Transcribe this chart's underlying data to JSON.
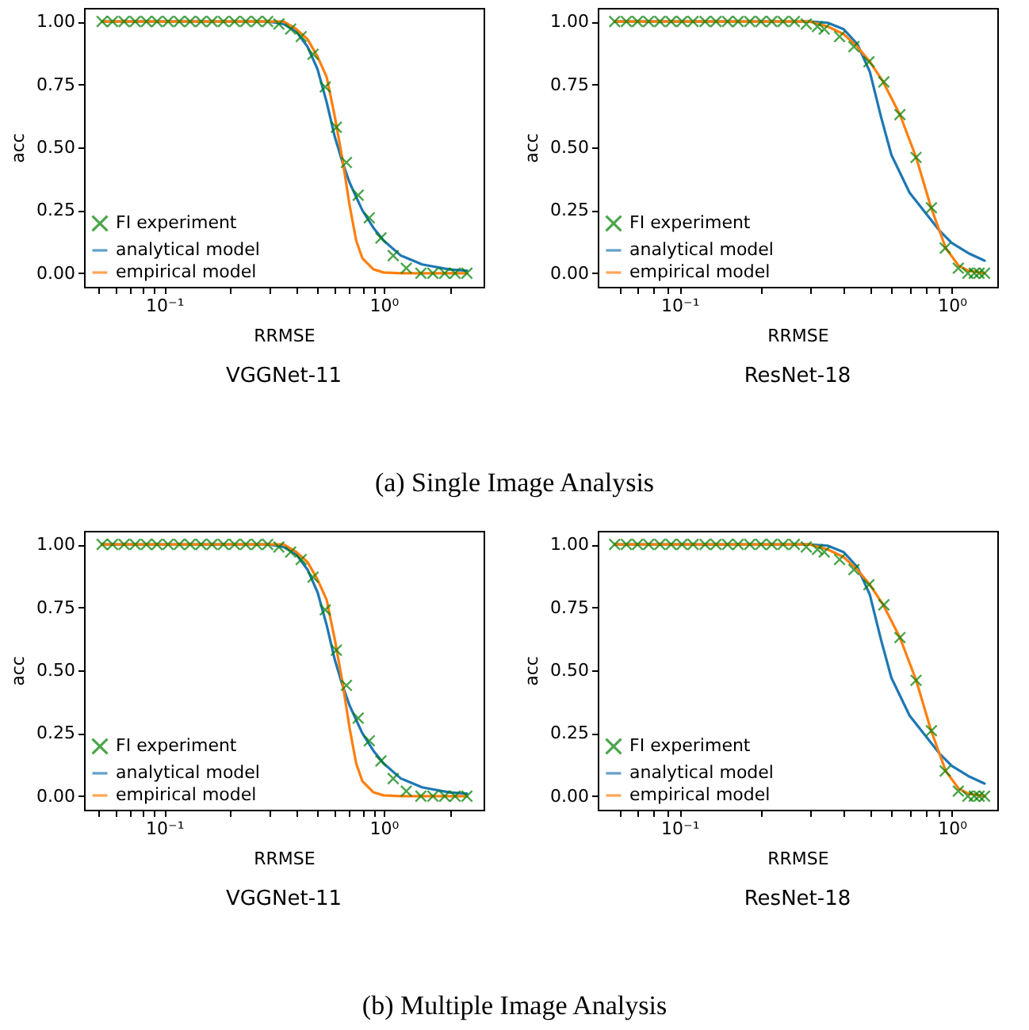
{
  "chart_data": [
    {
      "type": "line",
      "title": "VGGNet-11",
      "xlabel": "RRMSE",
      "ylabel": "acc",
      "log": "x",
      "legend": "bottom left",
      "grid": false,
      "annotations": [
        "(a)  Single Image Analysis"
      ],
      "xlim": [
        0.043,
        2.86
      ],
      "ylim": [
        -0.054,
        1.054
      ],
      "xticks": [
        {
          "value": 0.05,
          "label": null
        },
        {
          "value": 0.06,
          "label": null
        },
        {
          "value": 0.07,
          "label": null
        },
        {
          "value": 0.08,
          "label": null
        },
        {
          "value": 0.09,
          "label": null
        },
        {
          "value": 0.1,
          "label": "10⁻¹"
        },
        {
          "value": 0.2,
          "label": null
        },
        {
          "value": 0.3,
          "label": null
        },
        {
          "value": 0.4,
          "label": null
        },
        {
          "value": 0.5,
          "label": null
        },
        {
          "value": 0.6,
          "label": null
        },
        {
          "value": 0.7,
          "label": null
        },
        {
          "value": 0.8,
          "label": null
        },
        {
          "value": 0.9,
          "label": null
        },
        {
          "value": 1,
          "label": "10⁰"
        },
        {
          "value": 2,
          "label": null
        }
      ],
      "yticks": [
        {
          "value": 0,
          "label": "0.00"
        },
        {
          "value": 0.25,
          "label": "0.25"
        },
        {
          "value": 0.5,
          "label": "0.50"
        },
        {
          "value": 0.75,
          "label": "0.75"
        },
        {
          "value": 1,
          "label": "1.00"
        }
      ],
      "series": [
        {
          "name": "FI experiment",
          "type": "scatter",
          "marker": "cross",
          "color": "#008000",
          "x": [
            0.052,
            0.058,
            0.0655,
            0.0736,
            0.0828,
            0.0925,
            0.104,
            0.117,
            0.131,
            0.147,
            0.165,
            0.186,
            0.209,
            0.235,
            0.264,
            0.296,
            0.333,
            0.377,
            0.421,
            0.477,
            0.542,
            0.609,
            0.677,
            0.766,
            0.861,
            0.973,
            1.107,
            1.27,
            1.48,
            1.68,
            1.9,
            2.12,
            2.4
          ],
          "values": [
            1,
            1,
            1,
            1,
            1,
            1,
            1,
            1,
            1,
            1,
            1,
            1,
            1,
            1,
            1,
            1,
            0.99,
            0.97,
            0.94,
            0.87,
            0.74,
            0.58,
            0.44,
            0.31,
            0.22,
            0.14,
            0.07,
            0.02,
            0,
            0,
            0,
            0,
            0
          ]
        },
        {
          "name": "analytical model",
          "type": "line",
          "color": "#1f77b4",
          "x": [
            0.052,
            0.3,
            0.35,
            0.4,
            0.45,
            0.5,
            0.55,
            0.6,
            0.65,
            0.7,
            0.8,
            0.9,
            1.0,
            1.2,
            1.5,
            2.0,
            2.4
          ],
          "values": [
            1,
            1,
            0.99,
            0.96,
            0.9,
            0.81,
            0.68,
            0.54,
            0.44,
            0.36,
            0.25,
            0.18,
            0.13,
            0.07,
            0.035,
            0.015,
            0.01
          ]
        },
        {
          "name": "empirical model",
          "type": "line",
          "color": "#ff7f0e",
          "x": [
            0.052,
            0.35,
            0.4,
            0.45,
            0.5,
            0.55,
            0.6,
            0.65,
            0.7,
            0.75,
            0.8,
            0.9,
            1.0,
            1.2,
            2.4
          ],
          "values": [
            1,
            1,
            0.97,
            0.93,
            0.86,
            0.78,
            0.62,
            0.45,
            0.27,
            0.13,
            0.06,
            0.015,
            0.003,
            0,
            0
          ]
        }
      ]
    },
    {
      "type": "line",
      "title": "ResNet-18",
      "xlabel": "RRMSE",
      "ylabel": "acc",
      "log": "x",
      "legend": "bottom left",
      "grid": false,
      "xlim": [
        0.05,
        1.47
      ],
      "ylim": [
        -0.054,
        1.054
      ],
      "xticks": [
        {
          "value": 0.06,
          "label": null
        },
        {
          "value": 0.07,
          "label": null
        },
        {
          "value": 0.08,
          "label": null
        },
        {
          "value": 0.09,
          "label": null
        },
        {
          "value": 0.1,
          "label": "10⁻¹"
        },
        {
          "value": 0.2,
          "label": null
        },
        {
          "value": 0.3,
          "label": null
        },
        {
          "value": 0.4,
          "label": null
        },
        {
          "value": 0.5,
          "label": null
        },
        {
          "value": 0.6,
          "label": null
        },
        {
          "value": 0.7,
          "label": null
        },
        {
          "value": 0.8,
          "label": null
        },
        {
          "value": 0.9,
          "label": null
        },
        {
          "value": 1,
          "label": "10⁰"
        }
      ],
      "yticks": [
        {
          "value": 0,
          "label": "0.00"
        },
        {
          "value": 0.25,
          "label": "0.25"
        },
        {
          "value": 0.5,
          "label": "0.50"
        },
        {
          "value": 0.75,
          "label": "0.75"
        },
        {
          "value": 1,
          "label": "1.00"
        }
      ],
      "series": [
        {
          "name": "FI experiment",
          "type": "scatter",
          "marker": "cross",
          "color": "#008000",
          "x": [
            0.0577,
            0.0637,
            0.07,
            0.0769,
            0.0846,
            0.093,
            0.102,
            0.112,
            0.124,
            0.136,
            0.15,
            0.164,
            0.181,
            0.199,
            0.218,
            0.24,
            0.264,
            0.292,
            0.321,
            0.34,
            0.387,
            0.437,
            0.496,
            0.563,
            0.645,
            0.739,
            0.842,
            0.946,
            1.057,
            1.146,
            1.21,
            1.26,
            1.32
          ],
          "values": [
            1,
            1,
            1,
            1,
            1,
            1,
            1,
            1,
            1,
            1,
            1,
            1,
            1,
            1,
            1,
            1,
            1,
            0.99,
            0.98,
            0.97,
            0.94,
            0.9,
            0.84,
            0.76,
            0.63,
            0.46,
            0.26,
            0.1,
            0.02,
            0,
            0,
            0,
            0
          ]
        },
        {
          "name": "analytical model",
          "type": "line",
          "color": "#1f77b4",
          "x": [
            0.0577,
            0.3,
            0.35,
            0.4,
            0.45,
            0.5,
            0.55,
            0.6,
            0.7,
            0.8,
            0.9,
            1.0,
            1.15,
            1.32
          ],
          "values": [
            1,
            1,
            0.995,
            0.97,
            0.91,
            0.8,
            0.62,
            0.47,
            0.32,
            0.24,
            0.17,
            0.12,
            0.08,
            0.05
          ]
        },
        {
          "name": "empirical model",
          "type": "line",
          "color": "#ff7f0e",
          "x": [
            0.0577,
            0.3,
            0.35,
            0.4,
            0.45,
            0.5,
            0.56,
            0.645,
            0.74,
            0.84,
            0.95,
            1.06,
            1.15,
            1.32
          ],
          "values": [
            1,
            1,
            0.98,
            0.95,
            0.9,
            0.84,
            0.76,
            0.63,
            0.46,
            0.26,
            0.1,
            0.03,
            0.01,
            0
          ]
        }
      ]
    },
    {
      "type": "line",
      "title": "VGGNet-11",
      "xlabel": "RRMSE",
      "ylabel": "acc",
      "log": "x",
      "legend": "bottom left",
      "grid": false,
      "annotations": [
        "(b)  Multiple Image Analysis"
      ],
      "xlim": [
        0.043,
        2.86
      ],
      "ylim": [
        -0.054,
        1.054
      ],
      "xticks": [
        {
          "value": 0.05,
          "label": null
        },
        {
          "value": 0.06,
          "label": null
        },
        {
          "value": 0.07,
          "label": null
        },
        {
          "value": 0.08,
          "label": null
        },
        {
          "value": 0.09,
          "label": null
        },
        {
          "value": 0.1,
          "label": "10⁻¹"
        },
        {
          "value": 0.2,
          "label": null
        },
        {
          "value": 0.3,
          "label": null
        },
        {
          "value": 0.4,
          "label": null
        },
        {
          "value": 0.5,
          "label": null
        },
        {
          "value": 0.6,
          "label": null
        },
        {
          "value": 0.7,
          "label": null
        },
        {
          "value": 0.8,
          "label": null
        },
        {
          "value": 0.9,
          "label": null
        },
        {
          "value": 1,
          "label": "10⁰"
        },
        {
          "value": 2,
          "label": null
        }
      ],
      "yticks": [
        {
          "value": 0,
          "label": "0.00"
        },
        {
          "value": 0.25,
          "label": "0.25"
        },
        {
          "value": 0.5,
          "label": "0.50"
        },
        {
          "value": 0.75,
          "label": "0.75"
        },
        {
          "value": 1,
          "label": "1.00"
        }
      ],
      "series": [
        {
          "name": "FI experiment",
          "type": "scatter",
          "marker": "cross",
          "color": "#008000",
          "x": [
            0.052,
            0.058,
            0.0655,
            0.0736,
            0.0828,
            0.0925,
            0.104,
            0.117,
            0.131,
            0.147,
            0.165,
            0.186,
            0.209,
            0.235,
            0.264,
            0.296,
            0.333,
            0.377,
            0.421,
            0.477,
            0.542,
            0.609,
            0.677,
            0.766,
            0.861,
            0.973,
            1.107,
            1.27,
            1.48,
            1.68,
            1.9,
            2.12,
            2.4
          ],
          "values": [
            1,
            1,
            1,
            1,
            1,
            1,
            1,
            1,
            1,
            1,
            1,
            1,
            1,
            1,
            1,
            1,
            0.99,
            0.97,
            0.94,
            0.87,
            0.74,
            0.58,
            0.44,
            0.31,
            0.22,
            0.14,
            0.07,
            0.02,
            0,
            0,
            0,
            0,
            0
          ]
        },
        {
          "name": "analytical model",
          "type": "line",
          "color": "#1f77b4",
          "x": [
            0.052,
            0.3,
            0.35,
            0.4,
            0.45,
            0.5,
            0.55,
            0.6,
            0.65,
            0.7,
            0.8,
            0.9,
            1.0,
            1.2,
            1.5,
            2.0,
            2.4
          ],
          "values": [
            1,
            1,
            0.99,
            0.96,
            0.9,
            0.81,
            0.68,
            0.54,
            0.44,
            0.36,
            0.25,
            0.18,
            0.13,
            0.07,
            0.035,
            0.015,
            0.01
          ]
        },
        {
          "name": "empirical model",
          "type": "line",
          "color": "#ff7f0e",
          "x": [
            0.052,
            0.35,
            0.4,
            0.45,
            0.5,
            0.55,
            0.6,
            0.65,
            0.7,
            0.75,
            0.8,
            0.9,
            1.0,
            1.2,
            2.4
          ],
          "values": [
            1,
            1,
            0.97,
            0.93,
            0.86,
            0.78,
            0.62,
            0.45,
            0.27,
            0.13,
            0.06,
            0.015,
            0.003,
            0,
            0
          ]
        }
      ]
    },
    {
      "type": "line",
      "title": "ResNet-18",
      "xlabel": "RRMSE",
      "ylabel": "acc",
      "log": "x",
      "legend": "bottom left",
      "grid": false,
      "xlim": [
        0.05,
        1.47
      ],
      "ylim": [
        -0.054,
        1.054
      ],
      "xticks": [
        {
          "value": 0.06,
          "label": null
        },
        {
          "value": 0.07,
          "label": null
        },
        {
          "value": 0.08,
          "label": null
        },
        {
          "value": 0.09,
          "label": null
        },
        {
          "value": 0.1,
          "label": "10⁻¹"
        },
        {
          "value": 0.2,
          "label": null
        },
        {
          "value": 0.3,
          "label": null
        },
        {
          "value": 0.4,
          "label": null
        },
        {
          "value": 0.5,
          "label": null
        },
        {
          "value": 0.6,
          "label": null
        },
        {
          "value": 0.7,
          "label": null
        },
        {
          "value": 0.8,
          "label": null
        },
        {
          "value": 0.9,
          "label": null
        },
        {
          "value": 1,
          "label": "10⁰"
        }
      ],
      "yticks": [
        {
          "value": 0,
          "label": "0.00"
        },
        {
          "value": 0.25,
          "label": "0.25"
        },
        {
          "value": 0.5,
          "label": "0.50"
        },
        {
          "value": 0.75,
          "label": "0.75"
        },
        {
          "value": 1,
          "label": "1.00"
        }
      ],
      "series": [
        {
          "name": "FI experiment",
          "type": "scatter",
          "marker": "cross",
          "color": "#008000",
          "x": [
            0.0577,
            0.0637,
            0.07,
            0.0769,
            0.0846,
            0.093,
            0.102,
            0.112,
            0.124,
            0.136,
            0.15,
            0.164,
            0.181,
            0.199,
            0.218,
            0.24,
            0.264,
            0.292,
            0.321,
            0.34,
            0.387,
            0.437,
            0.496,
            0.563,
            0.645,
            0.739,
            0.842,
            0.946,
            1.057,
            1.146,
            1.21,
            1.26,
            1.32
          ],
          "values": [
            1,
            1,
            1,
            1,
            1,
            1,
            1,
            1,
            1,
            1,
            1,
            1,
            1,
            1,
            1,
            1,
            1,
            0.99,
            0.98,
            0.97,
            0.94,
            0.9,
            0.84,
            0.76,
            0.63,
            0.46,
            0.26,
            0.1,
            0.02,
            0,
            0,
            0,
            0
          ]
        },
        {
          "name": "analytical model",
          "type": "line",
          "color": "#1f77b4",
          "x": [
            0.0577,
            0.3,
            0.35,
            0.4,
            0.45,
            0.5,
            0.55,
            0.6,
            0.7,
            0.8,
            0.9,
            1.0,
            1.15,
            1.32
          ],
          "values": [
            1,
            1,
            0.995,
            0.97,
            0.91,
            0.8,
            0.62,
            0.47,
            0.32,
            0.24,
            0.17,
            0.12,
            0.08,
            0.05
          ]
        },
        {
          "name": "empirical model",
          "type": "line",
          "color": "#ff7f0e",
          "x": [
            0.0577,
            0.3,
            0.35,
            0.4,
            0.45,
            0.5,
            0.56,
            0.645,
            0.74,
            0.84,
            0.95,
            1.06,
            1.15,
            1.32
          ],
          "values": [
            1,
            1,
            0.98,
            0.95,
            0.9,
            0.84,
            0.76,
            0.63,
            0.46,
            0.26,
            0.1,
            0.03,
            0.01,
            0
          ]
        }
      ]
    }
  ]
}
